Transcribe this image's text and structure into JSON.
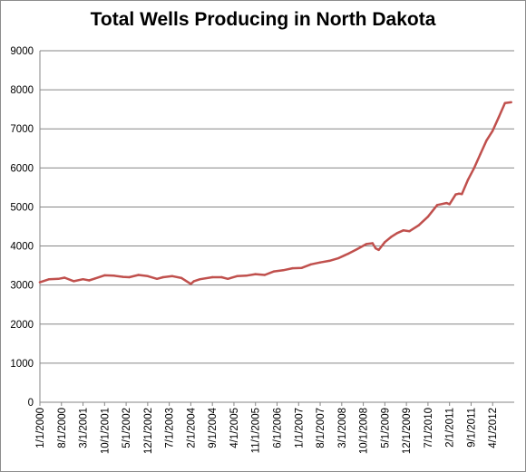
{
  "chart_data": {
    "type": "line",
    "title": "Total Wells Producing in North Dakota",
    "xlabel": "",
    "ylabel": "",
    "ylim": [
      0,
      9000
    ],
    "yticks": [
      "0",
      "1000",
      "2000",
      "3000",
      "4000",
      "5000",
      "6000",
      "7000",
      "8000",
      "9000"
    ],
    "xticks": [
      "1/1/2000",
      "8/1/2000",
      "3/1/2001",
      "10/1/2001",
      "5/1/2002",
      "12/1/2002",
      "7/1/2003",
      "2/1/2004",
      "9/1/2004",
      "4/1/2005",
      "11/1/2005",
      "6/1/2006",
      "1/1/2007",
      "8/1/2007",
      "3/1/2008",
      "10/1/2008",
      "5/1/2009",
      "12/1/2009",
      "7/1/2010",
      "2/1/2011",
      "9/1/2011",
      "4/1/2012"
    ],
    "grid": "horizontal",
    "legend": "none",
    "line_color": "#c0504d",
    "series": [
      {
        "x": [
          "2000-01",
          "2000-04",
          "2000-07",
          "2000-09",
          "2000-12",
          "2001-03",
          "2001-05",
          "2001-07",
          "2001-10",
          "2002-01",
          "2002-04",
          "2002-06",
          "2002-09",
          "2002-12",
          "2003-03",
          "2003-05",
          "2003-08",
          "2003-11",
          "2004-02",
          "2004-03",
          "2004-05",
          "2004-09",
          "2004-12",
          "2005-02",
          "2005-05",
          "2005-08",
          "2005-11",
          "2006-02",
          "2006-05",
          "2006-08",
          "2006-11",
          "2007-02",
          "2007-05",
          "2007-08",
          "2007-11",
          "2008-02",
          "2008-05",
          "2008-08",
          "2008-11",
          "2009-01",
          "2009-02",
          "2009-03",
          "2009-05",
          "2009-07",
          "2009-09",
          "2009-11",
          "2010-01",
          "2010-04",
          "2010-07",
          "2010-10",
          "2011-01",
          "2011-02",
          "2011-04",
          "2011-05",
          "2011-06",
          "2011-08",
          "2011-10",
          "2011-12",
          "2012-02",
          "2012-04",
          "2012-06",
          "2012-08",
          "2012-10"
        ],
        "values": [
          3070,
          3150,
          3160,
          3190,
          3100,
          3150,
          3120,
          3170,
          3250,
          3240,
          3210,
          3200,
          3260,
          3230,
          3160,
          3200,
          3230,
          3180,
          3030,
          3100,
          3150,
          3200,
          3200,
          3160,
          3230,
          3240,
          3280,
          3260,
          3350,
          3380,
          3430,
          3440,
          3530,
          3580,
          3620,
          3690,
          3800,
          3920,
          4050,
          4070,
          3940,
          3900,
          4100,
          4230,
          4330,
          4400,
          4380,
          4530,
          4750,
          5050,
          5100,
          5070,
          5320,
          5340,
          5330,
          5700,
          6000,
          6350,
          6700,
          6950,
          7300,
          7660,
          7680
        ]
      }
    ]
  }
}
